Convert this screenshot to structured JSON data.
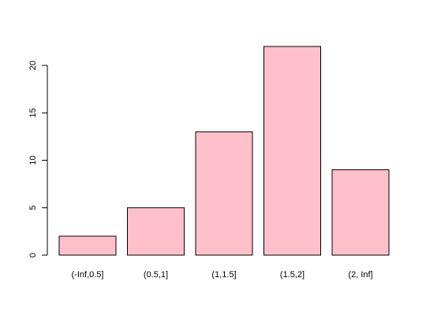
{
  "chart_data": {
    "type": "bar",
    "categories": [
      "(-Inf,0.5]",
      "(0.5,1]",
      "(1,1.5]",
      "(1.5,2]",
      "(2, Inf]"
    ],
    "values": [
      2,
      5,
      13,
      22,
      9
    ],
    "title": "",
    "xlabel": "",
    "ylabel": "",
    "ylim": [
      0,
      22
    ],
    "yticks": [
      0,
      5,
      10,
      15,
      20
    ],
    "grid": false,
    "bar_color": "#FFC0CB",
    "border_color": "#000000"
  }
}
